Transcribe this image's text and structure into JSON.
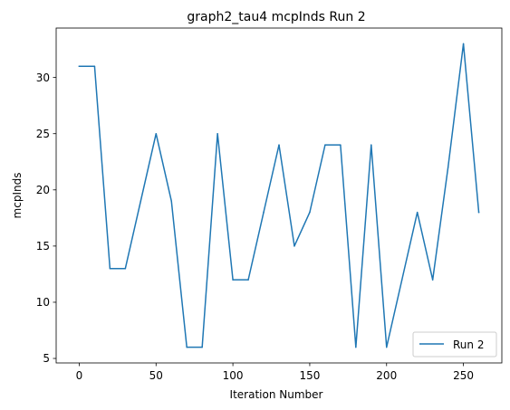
{
  "chart_data": {
    "type": "line",
    "title": "graph2_tau4 mcpInds Run 2",
    "xlabel": "Iteration Number",
    "ylabel": "mcpInds",
    "xlim": [
      -15,
      275
    ],
    "ylim": [
      4.6,
      34.4
    ],
    "xticks": [
      0,
      50,
      100,
      150,
      200,
      250
    ],
    "yticks": [
      5,
      10,
      15,
      20,
      25,
      30
    ],
    "grid": false,
    "legend_position": "lower-right",
    "series": [
      {
        "name": "Run 2",
        "color": "#1f77b4",
        "x": [
          0,
          10,
          20,
          30,
          40,
          50,
          60,
          70,
          80,
          90,
          100,
          110,
          120,
          130,
          140,
          150,
          160,
          170,
          180,
          190,
          200,
          210,
          220,
          230,
          240,
          250,
          260
        ],
        "y": [
          31,
          31,
          13,
          13,
          19,
          25,
          19,
          6,
          6,
          25,
          12,
          12,
          18,
          24,
          15,
          18,
          24,
          24,
          6,
          24,
          6,
          12,
          18,
          12,
          22,
          33,
          18
        ]
      }
    ]
  }
}
